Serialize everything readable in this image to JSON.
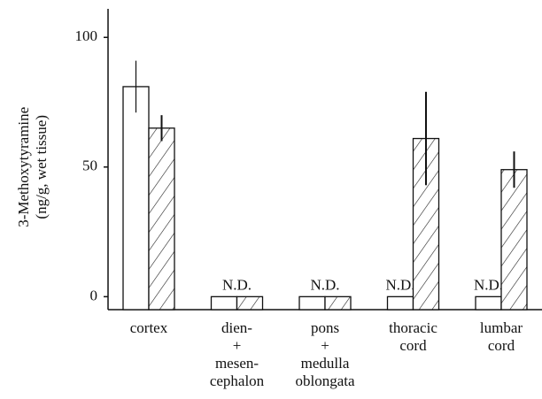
{
  "chart_data": {
    "type": "bar",
    "ylabel": [
      "3-Methoxytyramine",
      "(ng/g, wet tissue)"
    ],
    "categories": [
      "cortex",
      "dien-\n+\nmesen-\ncephalon",
      "pons\n+\nmedulla\noblongata",
      "thoracic\ncord",
      "lumbar\ncord"
    ],
    "series": [
      {
        "color": "#ffffff",
        "hatch": false,
        "values": [
          81,
          null,
          null,
          null,
          null
        ],
        "errors": [
          10,
          null,
          null,
          null,
          null
        ],
        "value_labels": [
          null,
          "N.D.",
          "N.D.",
          "N.D.",
          "N.D."
        ]
      },
      {
        "color": "#ffffff",
        "hatch": true,
        "values": [
          65,
          null,
          null,
          61,
          49
        ],
        "errors": [
          5,
          null,
          null,
          18,
          7
        ],
        "value_labels": [
          null,
          null,
          null,
          null,
          null
        ]
      }
    ],
    "ylim": [
      -5,
      111
    ],
    "yticks": [
      0,
      50,
      100
    ],
    "grid": false
  }
}
